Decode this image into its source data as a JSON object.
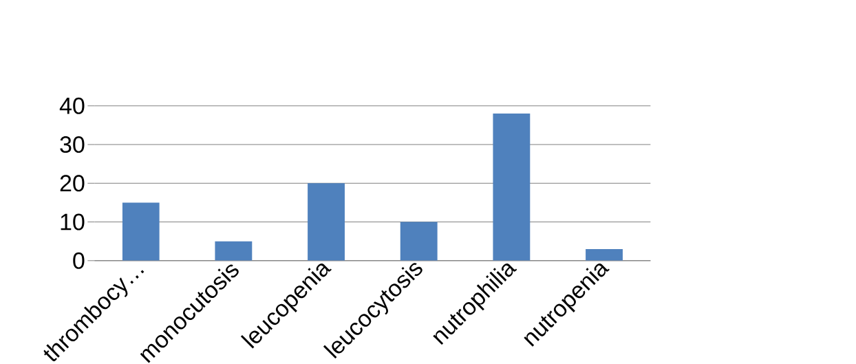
{
  "chart_data": {
    "type": "bar",
    "categories": [
      "thrombocy…",
      "monocutosis",
      "leucopenia",
      "leucocytosis",
      "nutrophilia",
      "nutropenia"
    ],
    "values": [
      15,
      5,
      20,
      10,
      38,
      3
    ],
    "color": "#4f81bd",
    "ylim": [
      0,
      40
    ],
    "yticks": [
      0,
      10,
      20,
      30,
      40
    ],
    "grid": "y"
  }
}
